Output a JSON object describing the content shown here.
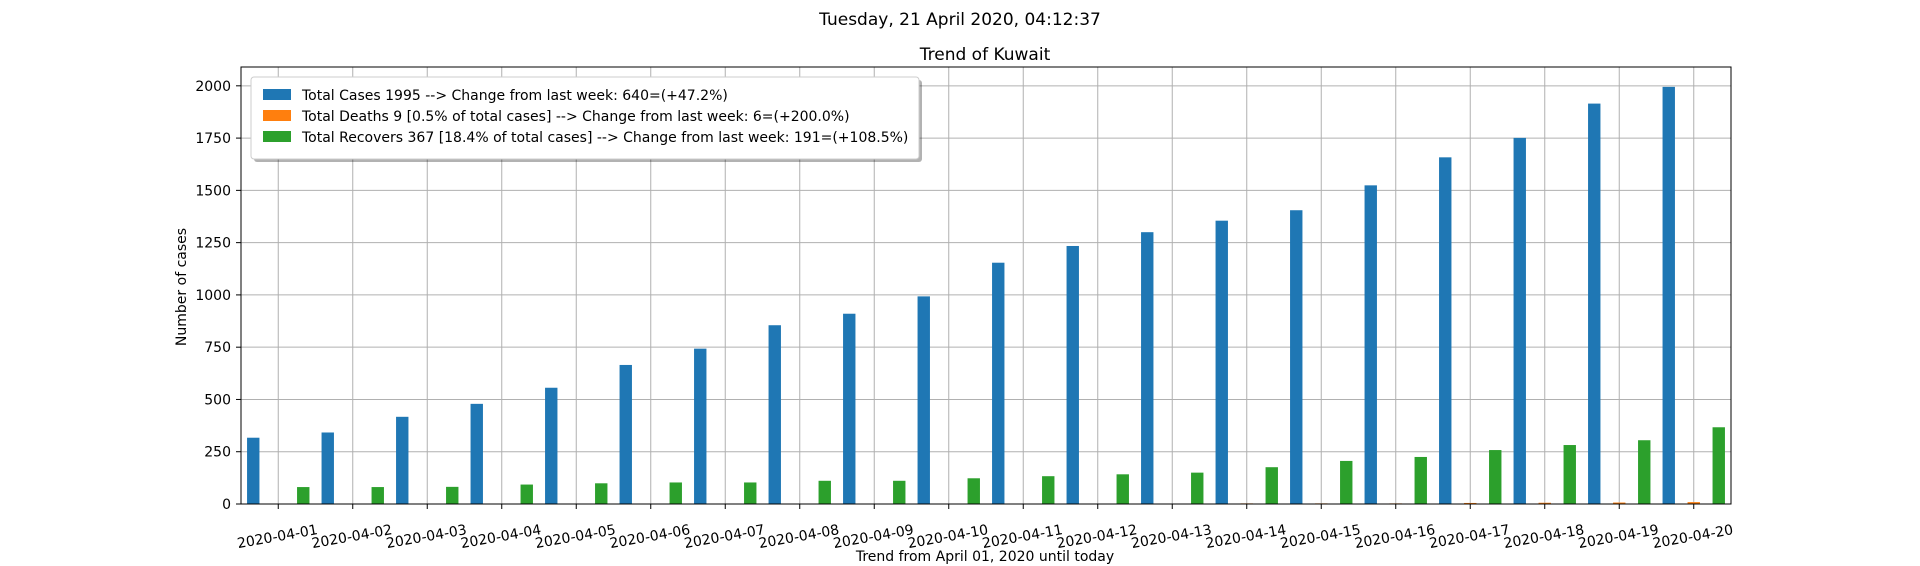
{
  "header": {
    "timestamp": "Tuesday, 21 April 2020, 04:12:37"
  },
  "chart_data": {
    "type": "bar",
    "title": "Trend of Kuwait",
    "xlabel": "Trend from April 01, 2020 until today",
    "ylabel": "Number of cases",
    "ylim": [
      0,
      2090
    ],
    "yticks": [
      0,
      250,
      500,
      750,
      1000,
      1250,
      1500,
      1750,
      2000
    ],
    "grid": true,
    "legend_position": "top-left",
    "categories": [
      "2020-04-01",
      "2020-04-02",
      "2020-04-03",
      "2020-04-04",
      "2020-04-05",
      "2020-04-06",
      "2020-04-07",
      "2020-04-08",
      "2020-04-09",
      "2020-04-10",
      "2020-04-11",
      "2020-04-12",
      "2020-04-13",
      "2020-04-14",
      "2020-04-15",
      "2020-04-16",
      "2020-04-17",
      "2020-04-18",
      "2020-04-19",
      "2020-04-20"
    ],
    "series": [
      {
        "name": "Total Cases 1995 --> Change from last week: 640=(+47.2%)",
        "color": "#1f77b4",
        "values": [
          317,
          342,
          417,
          479,
          556,
          665,
          743,
          855,
          910,
          993,
          1154,
          1234,
          1300,
          1355,
          1405,
          1524,
          1658,
          1751,
          1915,
          1995
        ]
      },
      {
        "name": "Total Deaths 9 [0.5% of total cases] --> Change from last week: 6=(+200.0%)",
        "color": "#ff7f0e",
        "values": [
          0,
          0,
          0,
          0,
          0,
          1,
          1,
          1,
          1,
          1,
          1,
          1,
          2,
          3,
          3,
          3,
          5,
          6,
          7,
          9
        ]
      },
      {
        "name": "Total Recovers 367 [18.4% of total cases] --> Change from last week: 191=(+108.5%)",
        "color": "#2ca02c",
        "values": [
          81,
          81,
          82,
          93,
          99,
          103,
          103,
          111,
          111,
          123,
          133,
          142,
          150,
          176,
          206,
          225,
          258,
          282,
          305,
          367
        ]
      }
    ]
  }
}
